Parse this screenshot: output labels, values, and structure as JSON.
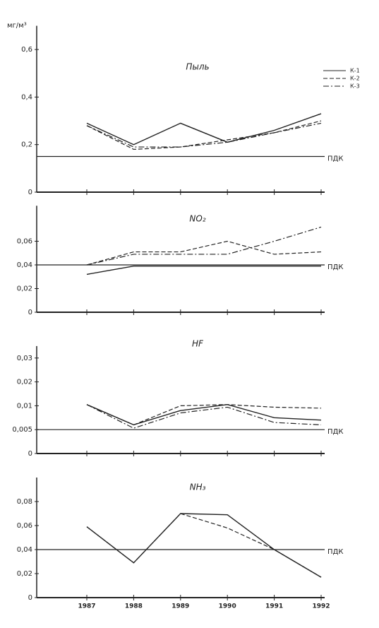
{
  "chart_data": [
    {
      "type": "line",
      "title": "Пыль",
      "y_label": "мг/м³",
      "legend": true,
      "ylim": [
        0,
        0.7
      ],
      "yticks": [
        0,
        {
          "value": 0.2,
          "label": "0,2"
        },
        {
          "value": 0.4,
          "label": "0,4"
        },
        {
          "value": 0.6,
          "label": "0,6"
        }
      ],
      "reference_line": {
        "value": 0.15,
        "label": "ПДК"
      },
      "series": [
        {
          "name": "К-1",
          "color": "#222222",
          "style": "solid",
          "values": [
            0.29,
            0.2,
            0.29,
            0.21,
            0.26,
            0.33
          ]
        },
        {
          "name": "К-2",
          "color": "#222222",
          "style": "dashed",
          "values": [
            0.28,
            0.18,
            0.19,
            0.22,
            0.25,
            0.3
          ]
        },
        {
          "name": "К-3",
          "color": "#222222",
          "style": "dashdot",
          "values": [
            0.28,
            0.19,
            0.19,
            0.21,
            0.25,
            0.29
          ]
        }
      ]
    },
    {
      "type": "line",
      "title": "NO₂",
      "ylim": [
        0,
        0.09
      ],
      "yticks": [
        0,
        {
          "value": 0.02,
          "label": "0,02"
        },
        {
          "value": 0.04,
          "label": "0,04"
        },
        {
          "value": 0.06,
          "label": "0,06"
        }
      ],
      "reference_line": {
        "value": 0.04,
        "label": "ПДК"
      },
      "series": [
        {
          "name": "К-1",
          "color": "#222222",
          "style": "solid",
          "values": [
            0.032,
            0.039,
            0.039,
            0.039,
            0.039,
            0.039
          ]
        },
        {
          "name": "К-2",
          "color": "#222222",
          "style": "dashed",
          "values": [
            0.04,
            0.051,
            0.051,
            0.06,
            0.049,
            0.051
          ]
        },
        {
          "name": "К-3",
          "color": "#222222",
          "style": "dashdot",
          "values": [
            0.04,
            0.049,
            0.049,
            0.049,
            0.06,
            0.072
          ]
        }
      ]
    },
    {
      "type": "line",
      "title": "HF",
      "ylim": [
        0,
        0.035
      ],
      "yticks": [
        0,
        {
          "value": 0.005,
          "label": "0,005"
        },
        {
          "value": 0.01,
          "label": "0,01"
        },
        {
          "value": 0.02,
          "label": "0,02"
        },
        {
          "value": 0.03,
          "label": "0,03"
        }
      ],
      "reference_line": {
        "value": 0.005,
        "label": "ПДК"
      },
      "series": [
        {
          "name": "К-1",
          "color": "#222222",
          "style": "solid",
          "values": [
            0.0105,
            0.006,
            0.009,
            0.0105,
            0.0075,
            0.007
          ]
        },
        {
          "name": "К-2",
          "color": "#222222",
          "style": "dashed",
          "values": [
            0.0105,
            0.006,
            0.01,
            0.0105,
            0.0097,
            0.0095
          ]
        },
        {
          "name": "К-3",
          "color": "#222222",
          "style": "dashdot",
          "values": [
            0.0105,
            0.0053,
            0.0085,
            0.0097,
            0.0065,
            0.006
          ]
        }
      ]
    },
    {
      "type": "line",
      "title": "NH₃",
      "x": [
        1987,
        1988,
        1989,
        1990,
        1991,
        1992
      ],
      "ylim": [
        0,
        0.1
      ],
      "yticks": [
        0,
        {
          "value": 0.02,
          "label": "0,02"
        },
        {
          "value": 0.04,
          "label": "0,04"
        },
        {
          "value": 0.06,
          "label": "0,06"
        },
        {
          "value": 0.08,
          "label": "0,08"
        }
      ],
      "reference_line": {
        "value": 0.04,
        "label": "ПДК"
      },
      "series": [
        {
          "name": "К-1",
          "color": "#222222",
          "style": "solid",
          "values": [
            0.059,
            0.029,
            0.07,
            0.069,
            0.04,
            0.017
          ]
        },
        {
          "name": "К-2",
          "color": "#222222",
          "style": "dashed",
          "values": [
            0.059,
            0.029,
            0.07,
            0.058,
            0.04,
            0.017
          ]
        }
      ]
    }
  ]
}
